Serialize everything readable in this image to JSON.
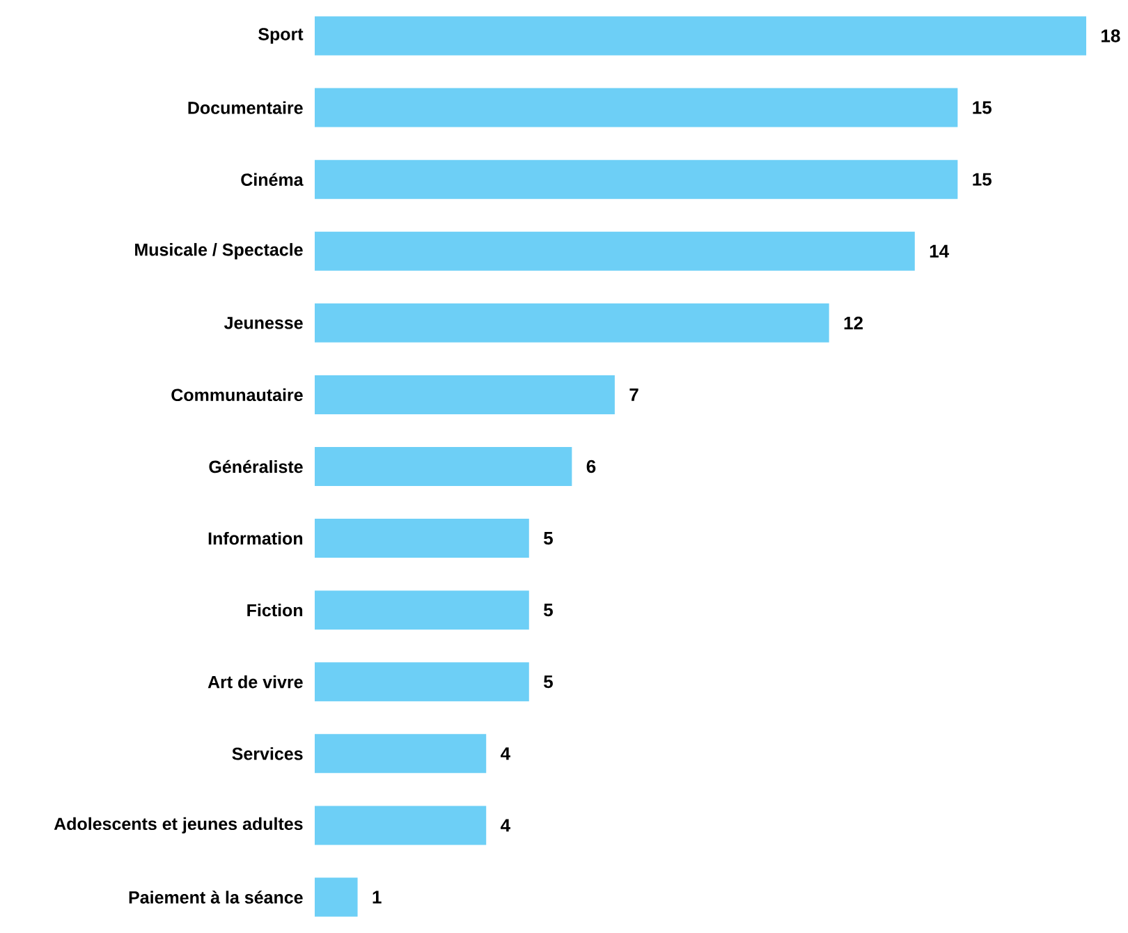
{
  "chart_data": {
    "type": "bar",
    "orientation": "horizontal",
    "categories": [
      "Sport",
      "Documentaire",
      "Cinéma",
      "Musicale / Spectacle",
      "Jeunesse",
      "Communautaire",
      "Généraliste",
      "Information",
      "Fiction",
      "Art de vivre",
      "Services",
      "Adolescents et jeunes adultes",
      "Paiement à la séance"
    ],
    "values": [
      18,
      15,
      15,
      14,
      12,
      7,
      6,
      5,
      5,
      5,
      4,
      4,
      1
    ],
    "color": "#6dcff6",
    "data_labels": true,
    "tick_labels": "y"
  }
}
